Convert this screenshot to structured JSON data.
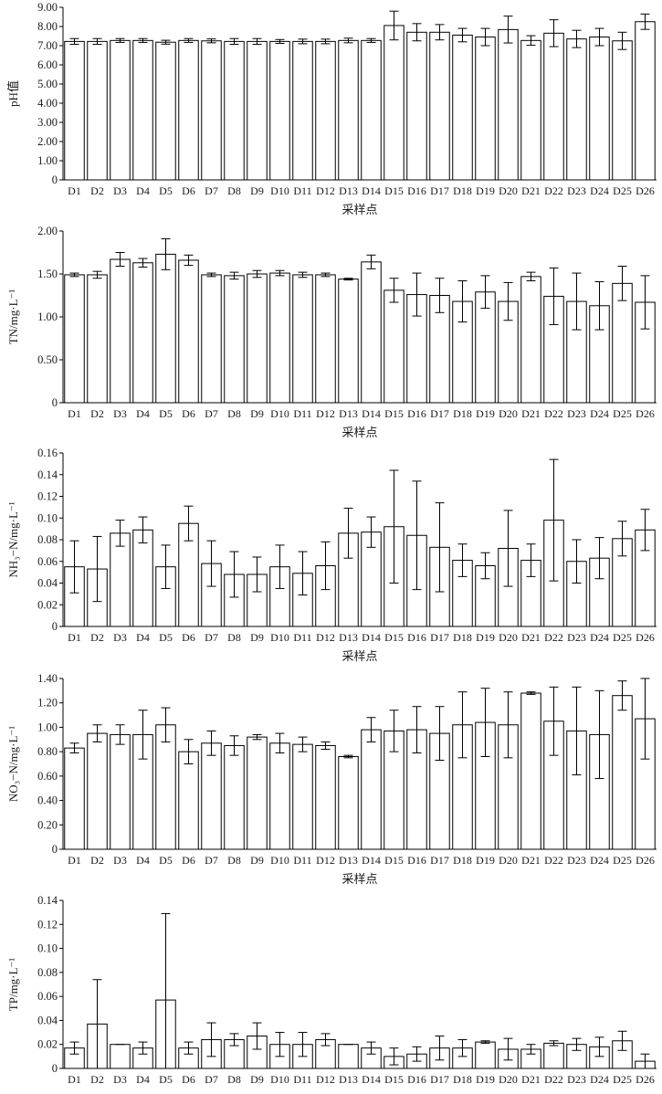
{
  "chart_data": [
    {
      "type": "bar",
      "ylabel": "pH值",
      "xlabel": "采样点",
      "ylim": [
        0,
        9
      ],
      "yticks": [
        "0",
        "1.00",
        "2.00",
        "3.00",
        "4.00",
        "5.00",
        "6.00",
        "7.00",
        "8.00",
        "9.00"
      ],
      "categories": [
        "D1",
        "D2",
        "D3",
        "D4",
        "D5",
        "D6",
        "D7",
        "D8",
        "D9",
        "D10",
        "D11",
        "D12",
        "D13",
        "D14",
        "D15",
        "D16",
        "D17",
        "D18",
        "D19",
        "D20",
        "D21",
        "D22",
        "D23",
        "D24",
        "D25",
        "D26"
      ],
      "values": [
        7.22,
        7.22,
        7.27,
        7.27,
        7.18,
        7.27,
        7.25,
        7.22,
        7.22,
        7.22,
        7.22,
        7.22,
        7.27,
        7.27,
        8.05,
        7.7,
        7.7,
        7.55,
        7.45,
        7.84,
        7.27,
        7.65,
        7.35,
        7.45,
        7.25,
        8.25
      ],
      "errors": [
        0.15,
        0.15,
        0.1,
        0.1,
        0.1,
        0.1,
        0.1,
        0.15,
        0.15,
        0.1,
        0.12,
        0.12,
        0.12,
        0.1,
        0.75,
        0.45,
        0.4,
        0.35,
        0.45,
        0.7,
        0.25,
        0.7,
        0.45,
        0.45,
        0.45,
        0.4
      ]
    },
    {
      "type": "bar",
      "ylabel": "TN/mg·L⁻¹",
      "xlabel": "采样点",
      "ylim": [
        0,
        2
      ],
      "yticks": [
        "0",
        "0.50",
        "1.00",
        "1.50",
        "2.00"
      ],
      "categories": [
        "D1",
        "D2",
        "D3",
        "D4",
        "D5",
        "D6",
        "D7",
        "D8",
        "D9",
        "D10",
        "D11",
        "D12",
        "D13",
        "D14",
        "D15",
        "D16",
        "D17",
        "D18",
        "D19",
        "D20",
        "D21",
        "D22",
        "D23",
        "D24",
        "D25",
        "D26"
      ],
      "values": [
        1.49,
        1.49,
        1.67,
        1.63,
        1.73,
        1.66,
        1.49,
        1.48,
        1.5,
        1.51,
        1.49,
        1.49,
        1.44,
        1.64,
        1.31,
        1.26,
        1.25,
        1.18,
        1.29,
        1.18,
        1.47,
        1.24,
        1.18,
        1.13,
        1.39,
        1.17
      ],
      "errors": [
        0.02,
        0.04,
        0.08,
        0.05,
        0.18,
        0.06,
        0.02,
        0.04,
        0.04,
        0.03,
        0.03,
        0.02,
        0.01,
        0.08,
        0.14,
        0.25,
        0.2,
        0.24,
        0.19,
        0.22,
        0.05,
        0.33,
        0.33,
        0.28,
        0.2,
        0.31
      ]
    },
    {
      "type": "bar",
      "ylabel": "NH₃−N/mg·L⁻¹",
      "xlabel": "采样点",
      "ylim": [
        0,
        0.16
      ],
      "yticks": [
        "0",
        "0.02",
        "0.04",
        "0.06",
        "0.08",
        "0.10",
        "0.12",
        "0.14",
        "0.16"
      ],
      "categories": [
        "D1",
        "D2",
        "D3",
        "D4",
        "D5",
        "D6",
        "D7",
        "D8",
        "D9",
        "D10",
        "D11",
        "D12",
        "D13",
        "D14",
        "D15",
        "D16",
        "D17",
        "D18",
        "D19",
        "D20",
        "D21",
        "D22",
        "D23",
        "D24",
        "D25",
        "D26"
      ],
      "values": [
        0.055,
        0.053,
        0.086,
        0.089,
        0.055,
        0.095,
        0.058,
        0.048,
        0.048,
        0.055,
        0.049,
        0.056,
        0.086,
        0.087,
        0.092,
        0.084,
        0.073,
        0.061,
        0.056,
        0.072,
        0.061,
        0.098,
        0.06,
        0.063,
        0.081,
        0.089
      ],
      "errors": [
        0.024,
        0.03,
        0.012,
        0.012,
        0.02,
        0.016,
        0.021,
        0.021,
        0.016,
        0.02,
        0.02,
        0.022,
        0.023,
        0.014,
        0.052,
        0.05,
        0.041,
        0.015,
        0.012,
        0.035,
        0.015,
        0.056,
        0.02,
        0.019,
        0.016,
        0.019
      ]
    },
    {
      "type": "bar",
      "ylabel": "NO₃−N/mg·L⁻¹",
      "xlabel": "采样点",
      "ylim": [
        0,
        1.4
      ],
      "yticks": [
        "0",
        "0.20",
        "0.40",
        "0.60",
        "0.80",
        "1.00",
        "1.20",
        "1.40"
      ],
      "categories": [
        "D1",
        "D2",
        "D3",
        "D4",
        "D5",
        "D6",
        "D7",
        "D8",
        "D9",
        "D10",
        "D11",
        "D12",
        "D13",
        "D14",
        "D15",
        "D16",
        "D17",
        "D18",
        "D19",
        "D20",
        "D21",
        "D22",
        "D23",
        "D24",
        "D25",
        "D26"
      ],
      "values": [
        0.83,
        0.95,
        0.94,
        0.94,
        1.02,
        0.8,
        0.87,
        0.85,
        0.92,
        0.87,
        0.86,
        0.85,
        0.76,
        0.98,
        0.97,
        0.98,
        0.95,
        1.02,
        1.04,
        1.02,
        1.28,
        1.05,
        0.97,
        0.94,
        1.26,
        1.07
      ],
      "errors": [
        0.04,
        0.07,
        0.08,
        0.2,
        0.14,
        0.1,
        0.1,
        0.08,
        0.02,
        0.08,
        0.06,
        0.03,
        0.01,
        0.1,
        0.17,
        0.19,
        0.22,
        0.27,
        0.28,
        0.27,
        0.01,
        0.28,
        0.36,
        0.36,
        0.12,
        0.33
      ]
    },
    {
      "type": "bar",
      "ylabel": "TP/mg·L⁻¹",
      "xlabel": "",
      "ylim": [
        0,
        0.14
      ],
      "yticks": [
        "0",
        "0.02",
        "0.04",
        "0.06",
        "0.08",
        "0.10",
        "0.12",
        "0.14"
      ],
      "categories": [
        "D1",
        "D2",
        "D3",
        "D4",
        "D5",
        "D6",
        "D7",
        "D8",
        "D9",
        "D10",
        "D11",
        "D12",
        "D13",
        "D14",
        "D15",
        "D16",
        "D17",
        "D18",
        "D19",
        "D20",
        "D21",
        "D22",
        "D23",
        "D24",
        "D25",
        "D26"
      ],
      "values": [
        0.017,
        0.037,
        0.02,
        0.017,
        0.057,
        0.017,
        0.024,
        0.024,
        0.027,
        0.02,
        0.02,
        0.024,
        0.02,
        0.017,
        0.01,
        0.012,
        0.017,
        0.017,
        0.022,
        0.016,
        0.016,
        0.021,
        0.02,
        0.018,
        0.023,
        0.006
      ],
      "errors": [
        0.005,
        0.037,
        0.0,
        0.005,
        0.072,
        0.005,
        0.014,
        0.005,
        0.011,
        0.01,
        0.01,
        0.005,
        0.0,
        0.005,
        0.007,
        0.006,
        0.01,
        0.007,
        0.001,
        0.009,
        0.004,
        0.002,
        0.005,
        0.008,
        0.008,
        0.006
      ]
    }
  ]
}
